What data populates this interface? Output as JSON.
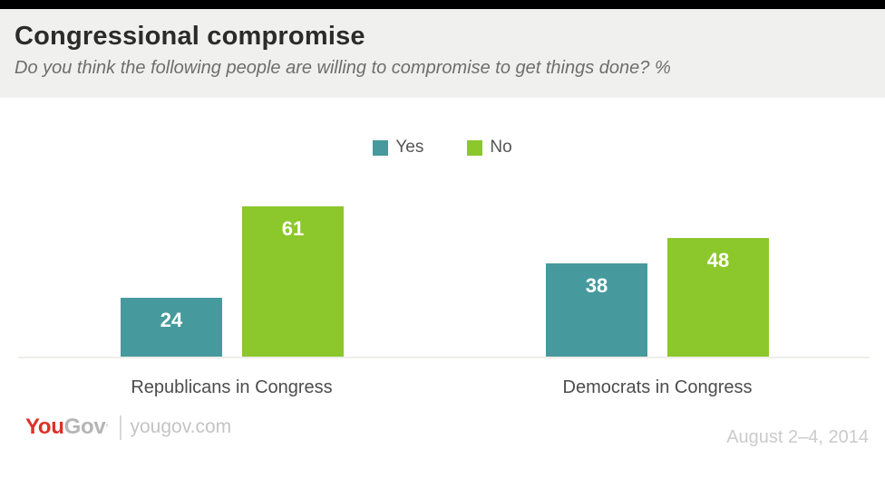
{
  "header": {
    "title": "Congressional compromise",
    "subtitle": "Do you think the following people are willing to compromise to get things done? %"
  },
  "chart_data": {
    "type": "bar",
    "categories": [
      "Republicans in Congress",
      "Democrats in Congress"
    ],
    "series": [
      {
        "name": "Yes",
        "color": "#469a9d",
        "values": [
          24,
          38
        ]
      },
      {
        "name": "No",
        "color": "#8cc72b",
        "values": [
          61,
          48
        ]
      }
    ],
    "title": "Congressional compromise",
    "xlabel": "",
    "ylabel": "",
    "ylim": [
      0,
      100
    ],
    "unit": "%",
    "value_labels": true,
    "legend_position": "top-center",
    "grid": false
  },
  "footer": {
    "logo": {
      "you": "You",
      "gov": "Gov",
      "mark": "’"
    },
    "site": "yougov.com",
    "date": "August 2–4, 2014"
  }
}
